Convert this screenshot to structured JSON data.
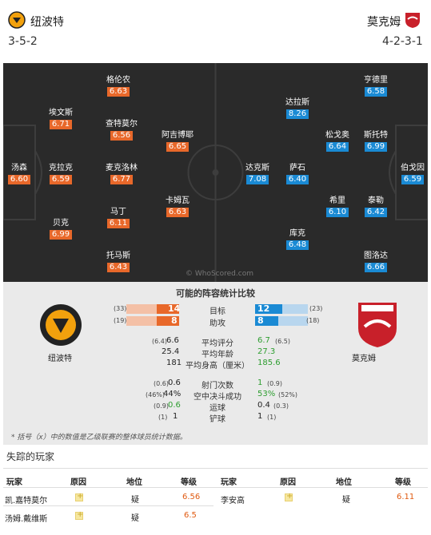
{
  "home": {
    "name": "纽波特",
    "formation": "3-5-2",
    "players": [
      {
        "name": "格伦农",
        "rating": "6.63"
      },
      {
        "name": "埃文斯",
        "rating": "6.71"
      },
      {
        "name": "查特莫尔",
        "rating": "6.56"
      },
      {
        "name": "阿吉博耶",
        "rating": "6.65"
      },
      {
        "name": "汤森",
        "rating": "6.60"
      },
      {
        "name": "克拉克",
        "rating": "6.59"
      },
      {
        "name": "麦克洛林",
        "rating": "6.77"
      },
      {
        "name": "卡姆瓦",
        "rating": "6.63"
      },
      {
        "name": "马丁",
        "rating": "6.11"
      },
      {
        "name": "贝克",
        "rating": "6.99"
      },
      {
        "name": "托马斯",
        "rating": "6.43"
      }
    ]
  },
  "away": {
    "name": "莫克姆",
    "formation": "4-2-3-1",
    "players": [
      {
        "name": "亨德里",
        "rating": "6.58"
      },
      {
        "name": "达拉斯",
        "rating": "8.26"
      },
      {
        "name": "松戈奥",
        "rating": "6.64"
      },
      {
        "name": "斯托特",
        "rating": "6.99"
      },
      {
        "name": "达克斯",
        "rating": "7.08"
      },
      {
        "name": "萨石",
        "rating": "6.40"
      },
      {
        "name": "伯戈因",
        "rating": "6.59"
      },
      {
        "name": "希里",
        "rating": "6.10"
      },
      {
        "name": "泰勒",
        "rating": "6.42"
      },
      {
        "name": "库克",
        "rating": "6.48"
      },
      {
        "name": "图洛达",
        "rating": "6.66"
      }
    ]
  },
  "watermark": "© WhoScored.com",
  "compare": {
    "title": "可能的阵容统计比较",
    "bars": [
      {
        "label": "目标",
        "home_total": "(33)",
        "home_val": "14",
        "home_frac": 0.42,
        "away_total": "(23)",
        "away_val": "12",
        "away_frac": 0.52
      },
      {
        "label": "助攻",
        "home_total": "(19)",
        "home_val": "8",
        "home_frac": 0.42,
        "away_total": "(18)",
        "away_val": "8",
        "away_frac": 0.44
      }
    ],
    "stats": [
      {
        "label": "平均评分",
        "home_small": "(6.4)",
        "home_val": "6.6",
        "away_val": "6.7",
        "away_small": "(6.5)",
        "away_green": true
      },
      {
        "label": "平均年龄",
        "home_small": "",
        "home_val": "25.4",
        "away_val": "27.3",
        "away_small": "",
        "away_green": true
      },
      {
        "label": "平均身高（厘米）",
        "home_small": "",
        "home_val": "181",
        "away_val": "185.6",
        "away_small": "",
        "away_green": true
      }
    ],
    "stats2": [
      {
        "label": "射门次数",
        "home_small": "(0.6)",
        "home_val": "0.6",
        "home_green": false,
        "away_val": "1",
        "away_small": "(0.9)",
        "away_green": true
      },
      {
        "label": "空中决斗成功",
        "home_small": "(46%)",
        "home_val": "44%",
        "home_green": false,
        "away_val": "53%",
        "away_small": "(52%)",
        "away_green": true
      },
      {
        "label": "运球",
        "home_small": "(0.9)",
        "home_val": "0.6",
        "home_green": true,
        "away_val": "0.4",
        "away_small": "(0.3)",
        "away_green": false
      },
      {
        "label": "铲球",
        "home_small": "(1)",
        "home_val": "1",
        "home_green": false,
        "away_val": "1",
        "away_small": "(1)",
        "away_green": false
      }
    ],
    "note": "* 括号（x）中的数值是乙级联赛的整体球员统计数据。"
  },
  "missing": {
    "title": "失踪的玩家",
    "headers": {
      "player": "玩家",
      "reason": "原因",
      "status": "地位",
      "rating": "等级"
    },
    "home": [
      {
        "player": "凯.嘉特莫尔",
        "status": "疑",
        "rating": "6.56"
      },
      {
        "player": "汤姆.戴维斯",
        "status": "疑",
        "rating": "6.5"
      }
    ],
    "away": [
      {
        "player": "李安高",
        "status": "疑",
        "rating": "6.11"
      }
    ]
  }
}
